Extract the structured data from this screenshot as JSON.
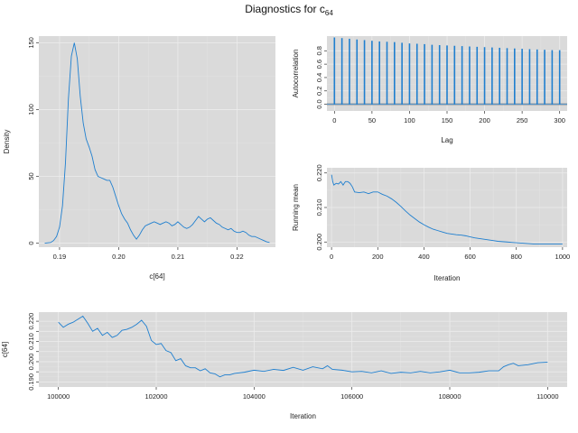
{
  "title": {
    "base": "Diagnostics for c",
    "subscript": "64"
  },
  "colors": {
    "series": "#1f7fcf",
    "panel": "#dadada",
    "grid": "#ececec",
    "ci_band": "#9a9a9a"
  },
  "chart_data": [
    {
      "id": "density",
      "type": "line",
      "xlabel": "c[64]",
      "ylabel": "Density",
      "xlim": [
        0.1865,
        0.2265
      ],
      "ylim": [
        -3,
        155
      ],
      "xticks": [
        0.19,
        0.2,
        0.21,
        0.22
      ],
      "xtick_labels": [
        "0.19",
        "0.20",
        "0.21",
        "0.22"
      ],
      "yticks": [
        0,
        50,
        100,
        150
      ],
      "ytick_labels": [
        "0",
        "50",
        "100",
        "150"
      ],
      "grid": true,
      "x": [
        0.1875,
        0.1885,
        0.189,
        0.1895,
        0.19,
        0.1905,
        0.191,
        0.1915,
        0.192,
        0.1925,
        0.193,
        0.1935,
        0.194,
        0.1945,
        0.195,
        0.1955,
        0.196,
        0.1965,
        0.197,
        0.1975,
        0.198,
        0.1985,
        0.199,
        0.1995,
        0.2,
        0.2005,
        0.201,
        0.2015,
        0.202,
        0.2025,
        0.203,
        0.2035,
        0.204,
        0.2045,
        0.205,
        0.2055,
        0.206,
        0.2065,
        0.207,
        0.2075,
        0.208,
        0.2085,
        0.209,
        0.2095,
        0.21,
        0.2105,
        0.211,
        0.2115,
        0.212,
        0.2125,
        0.213,
        0.2135,
        0.214,
        0.2145,
        0.215,
        0.2155,
        0.216,
        0.2165,
        0.217,
        0.2175,
        0.218,
        0.2185,
        0.219,
        0.2195,
        0.22,
        0.2205,
        0.221,
        0.2215,
        0.222,
        0.2225,
        0.223,
        0.2235,
        0.224,
        0.2245,
        0.225,
        0.2255
      ],
      "y": [
        0,
        0.5,
        2,
        5,
        12,
        28,
        60,
        108,
        140,
        150,
        138,
        110,
        90,
        78,
        72,
        65,
        55,
        50,
        49,
        48,
        47,
        47,
        42,
        35,
        28,
        22,
        18,
        15,
        10,
        6,
        3,
        6,
        10,
        13,
        14,
        15,
        16,
        15,
        14,
        15,
        16,
        15,
        13,
        14,
        16,
        14,
        12,
        11,
        12,
        14,
        17,
        20,
        18,
        16,
        18,
        19,
        17,
        15,
        14,
        12,
        11,
        10,
        11,
        9,
        8,
        8,
        9,
        8,
        6,
        5,
        5,
        4,
        3,
        2,
        1,
        0.5
      ]
    },
    {
      "id": "autocorrelation",
      "type": "bar",
      "xlabel": "Lag",
      "ylabel": "Autocorrelation",
      "xlim": [
        -10,
        310
      ],
      "ylim": [
        -0.1,
        1.02
      ],
      "xticks": [
        0,
        50,
        100,
        150,
        200,
        250,
        300
      ],
      "xtick_labels": [
        "0",
        "50",
        "100",
        "150",
        "200",
        "250",
        "300"
      ],
      "yticks": [
        0.0,
        0.2,
        0.4,
        0.6,
        0.8
      ],
      "ytick_labels": [
        "0.0",
        "0.2",
        "0.4",
        "0.6",
        "0.8"
      ],
      "ci_band": [
        -0.02,
        0.02
      ],
      "grid": true,
      "lags": [
        0,
        10,
        20,
        30,
        40,
        50,
        60,
        70,
        80,
        90,
        100,
        110,
        120,
        130,
        140,
        150,
        160,
        170,
        180,
        190,
        200,
        210,
        220,
        230,
        240,
        250,
        260,
        270,
        280,
        290,
        300
      ],
      "values": [
        1.0,
        0.99,
        0.98,
        0.97,
        0.96,
        0.95,
        0.94,
        0.935,
        0.93,
        0.92,
        0.91,
        0.905,
        0.9,
        0.89,
        0.885,
        0.88,
        0.875,
        0.87,
        0.865,
        0.86,
        0.855,
        0.85,
        0.845,
        0.84,
        0.835,
        0.83,
        0.825,
        0.82,
        0.815,
        0.81,
        0.81
      ]
    },
    {
      "id": "running_mean",
      "type": "line",
      "xlabel": "Iteration",
      "ylabel": "Running mean",
      "xlim": [
        -20,
        1020
      ],
      "ylim": [
        0.1985,
        0.2215
      ],
      "xticks": [
        0,
        200,
        400,
        600,
        800,
        1000
      ],
      "xtick_labels": [
        "0",
        "200",
        "400",
        "600",
        "800",
        "1000"
      ],
      "yticks": [
        0.2,
        0.21,
        0.22
      ],
      "ytick_labels": [
        "0.200",
        "0.210",
        "0.220"
      ],
      "grid": true,
      "x": [
        0,
        5,
        10,
        20,
        30,
        40,
        50,
        60,
        70,
        80,
        90,
        100,
        120,
        140,
        160,
        180,
        200,
        220,
        240,
        260,
        280,
        300,
        320,
        340,
        360,
        380,
        400,
        420,
        440,
        460,
        480,
        500,
        520,
        540,
        560,
        580,
        600,
        620,
        640,
        660,
        680,
        700,
        720,
        740,
        760,
        780,
        800,
        820,
        840,
        860,
        880,
        900,
        920,
        940,
        960,
        980,
        1000
      ],
      "y": [
        0.2195,
        0.2175,
        0.2165,
        0.217,
        0.2168,
        0.2175,
        0.2165,
        0.2175,
        0.2175,
        0.217,
        0.216,
        0.2145,
        0.2143,
        0.2145,
        0.214,
        0.2145,
        0.2145,
        0.2138,
        0.2133,
        0.2125,
        0.2115,
        0.2103,
        0.209,
        0.2078,
        0.2068,
        0.2058,
        0.205,
        0.2043,
        0.2037,
        0.2033,
        0.2029,
        0.2025,
        0.2023,
        0.2021,
        0.202,
        0.2018,
        0.2015,
        0.2012,
        0.201,
        0.2008,
        0.2006,
        0.2004,
        0.2002,
        0.2001,
        0.2,
        0.1999,
        0.1998,
        0.1997,
        0.1996,
        0.1995,
        0.1994,
        0.1994,
        0.1994,
        0.1994,
        0.1994,
        0.1994,
        0.1994
      ]
    },
    {
      "id": "trace",
      "type": "line",
      "xlabel": "Iteration",
      "ylabel": "c[64]",
      "xlim": [
        99600,
        110400
      ],
      "ylim": [
        0.1875,
        0.2245
      ],
      "xticks": [
        100000,
        102000,
        104000,
        106000,
        108000,
        110000
      ],
      "xtick_labels": [
        "100000",
        "102000",
        "104000",
        "106000",
        "108000",
        "110000"
      ],
      "yticks": [
        0.19,
        0.195,
        0.2,
        0.205,
        0.21,
        0.215,
        0.22
      ],
      "ytick_labels": [
        "0.190",
        "",
        "0.200",
        "",
        "0.210",
        "",
        "0.220"
      ],
      "grid": true,
      "x": [
        100000,
        100100,
        100200,
        100300,
        100400,
        100500,
        100600,
        100700,
        100800,
        100900,
        101000,
        101100,
        101200,
        101300,
        101400,
        101500,
        101600,
        101700,
        101800,
        101900,
        102000,
        102100,
        102200,
        102300,
        102400,
        102500,
        102600,
        102700,
        102800,
        102900,
        103000,
        103100,
        103200,
        103300,
        103400,
        103500,
        103600,
        103800,
        104000,
        104200,
        104400,
        104600,
        104800,
        105000,
        105200,
        105400,
        105500,
        105600,
        105800,
        106000,
        106200,
        106400,
        106600,
        106800,
        107000,
        107200,
        107400,
        107600,
        107800,
        108000,
        108200,
        108400,
        108600,
        108800,
        109000,
        109100,
        109200,
        109300,
        109400,
        109600,
        109800,
        110000
      ],
      "y": [
        0.2195,
        0.217,
        0.2185,
        0.2195,
        0.221,
        0.2225,
        0.219,
        0.215,
        0.2165,
        0.213,
        0.2145,
        0.212,
        0.213,
        0.2155,
        0.216,
        0.217,
        0.2185,
        0.2205,
        0.2175,
        0.2105,
        0.2085,
        0.209,
        0.2055,
        0.2045,
        0.2005,
        0.2015,
        0.198,
        0.197,
        0.197,
        0.1955,
        0.1965,
        0.1945,
        0.194,
        0.1925,
        0.1935,
        0.1935,
        0.1942,
        0.1948,
        0.1958,
        0.1952,
        0.1962,
        0.1957,
        0.1972,
        0.1958,
        0.1975,
        0.1965,
        0.198,
        0.1962,
        0.1958,
        0.195,
        0.1952,
        0.1945,
        0.1955,
        0.1942,
        0.1948,
        0.1945,
        0.1952,
        0.1945,
        0.195,
        0.1958,
        0.1945,
        0.1945,
        0.1948,
        0.1955,
        0.1955,
        0.1975,
        0.1985,
        0.1992,
        0.198,
        0.1985,
        0.1995,
        0.1998
      ]
    }
  ]
}
